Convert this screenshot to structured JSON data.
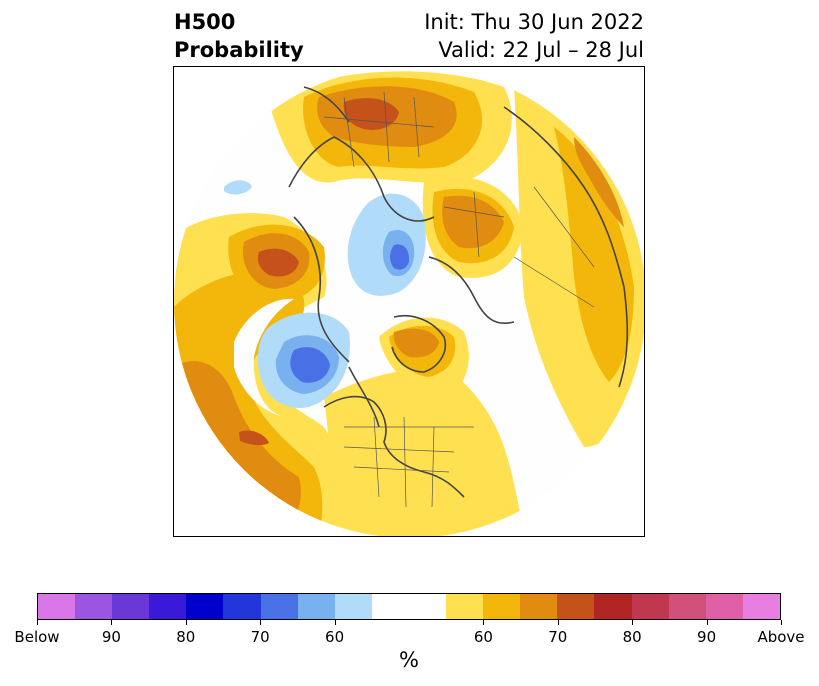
{
  "header": {
    "title_line1": "H500",
    "title_line2": "Probability",
    "init": "Init: Thu 30 Jun 2022",
    "valid": "Valid: 22 Jul – 28 Jul"
  },
  "colorbar": {
    "segments": [
      {
        "color": "#d977e8"
      },
      {
        "color": "#9b55e0"
      },
      {
        "color": "#6b38d8"
      },
      {
        "color": "#3a1ad8"
      },
      {
        "color": "#0000cc"
      },
      {
        "color": "#2236dc"
      },
      {
        "color": "#4a70e6"
      },
      {
        "color": "#78b0f0"
      },
      {
        "color": "#b0dcfa"
      },
      {
        "color": "#ffffff"
      },
      {
        "color": "#ffffff"
      },
      {
        "color": "#ffe050"
      },
      {
        "color": "#f2b70a"
      },
      {
        "color": "#e08c10"
      },
      {
        "color": "#c4521a"
      },
      {
        "color": "#b02424"
      },
      {
        "color": "#c03850"
      },
      {
        "color": "#d0507a"
      },
      {
        "color": "#e060a8"
      },
      {
        "color": "#e87ee0"
      }
    ],
    "tick_labels": [
      "Below",
      "90",
      "80",
      "70",
      "60",
      "60",
      "70",
      "80",
      "90",
      "Above"
    ],
    "units": "%"
  }
}
